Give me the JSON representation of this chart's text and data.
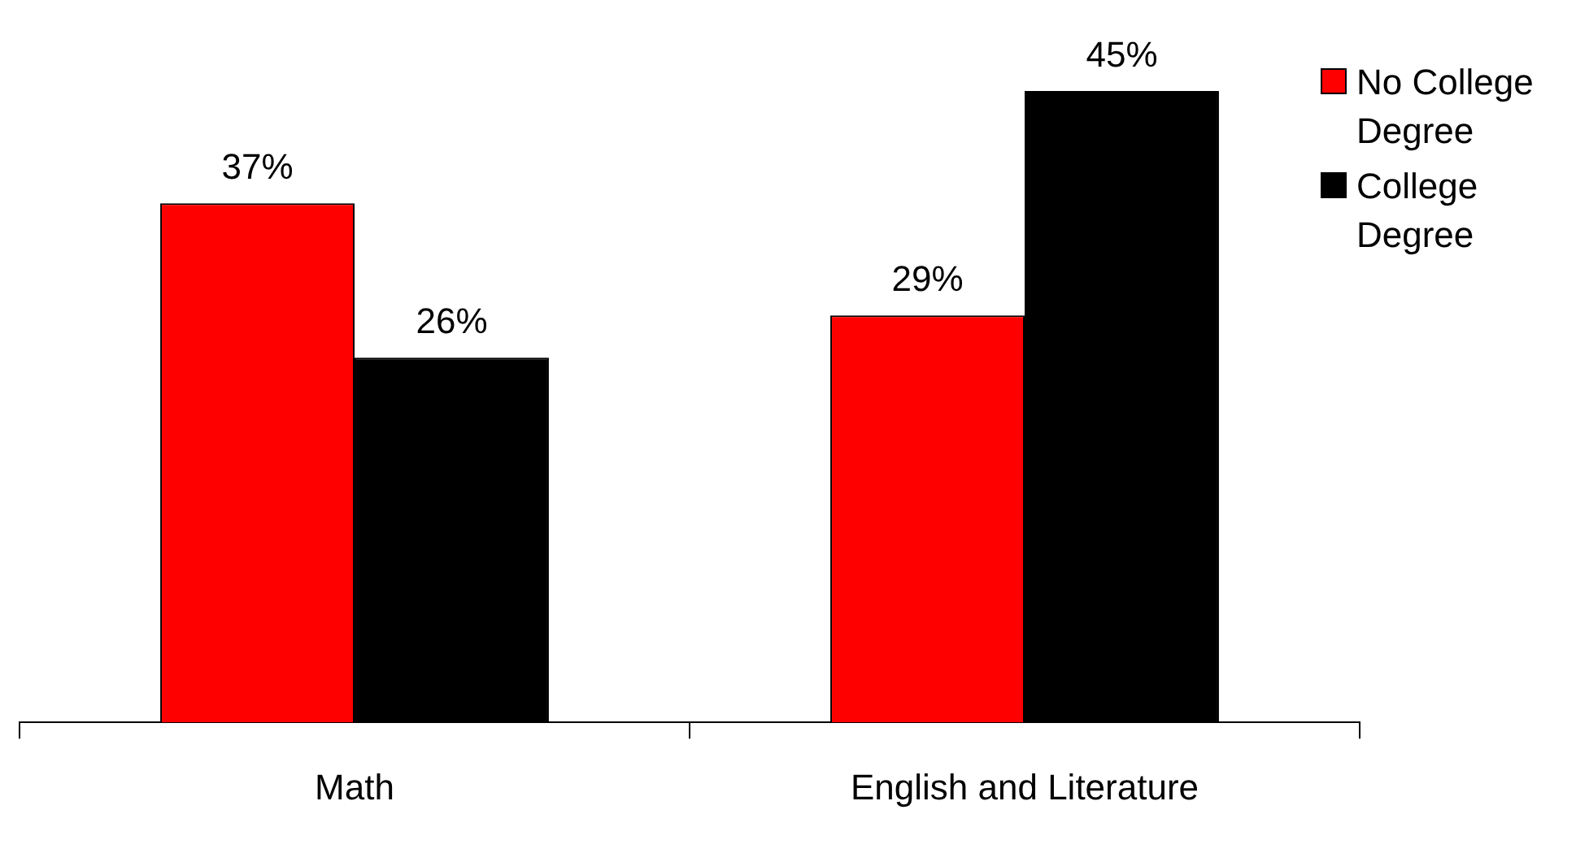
{
  "chart_data": {
    "type": "bar",
    "categories": [
      "Math",
      "English and Literature"
    ],
    "series": [
      {
        "name": "No College Degree",
        "color": "#ff0000",
        "values": [
          37,
          29
        ],
        "value_labels": [
          "37%",
          "29%"
        ]
      },
      {
        "name": "College Degree",
        "color": "#000000",
        "values": [
          26,
          45
        ],
        "value_labels": [
          "26%",
          "45%"
        ]
      }
    ],
    "legend": "top right"
  }
}
